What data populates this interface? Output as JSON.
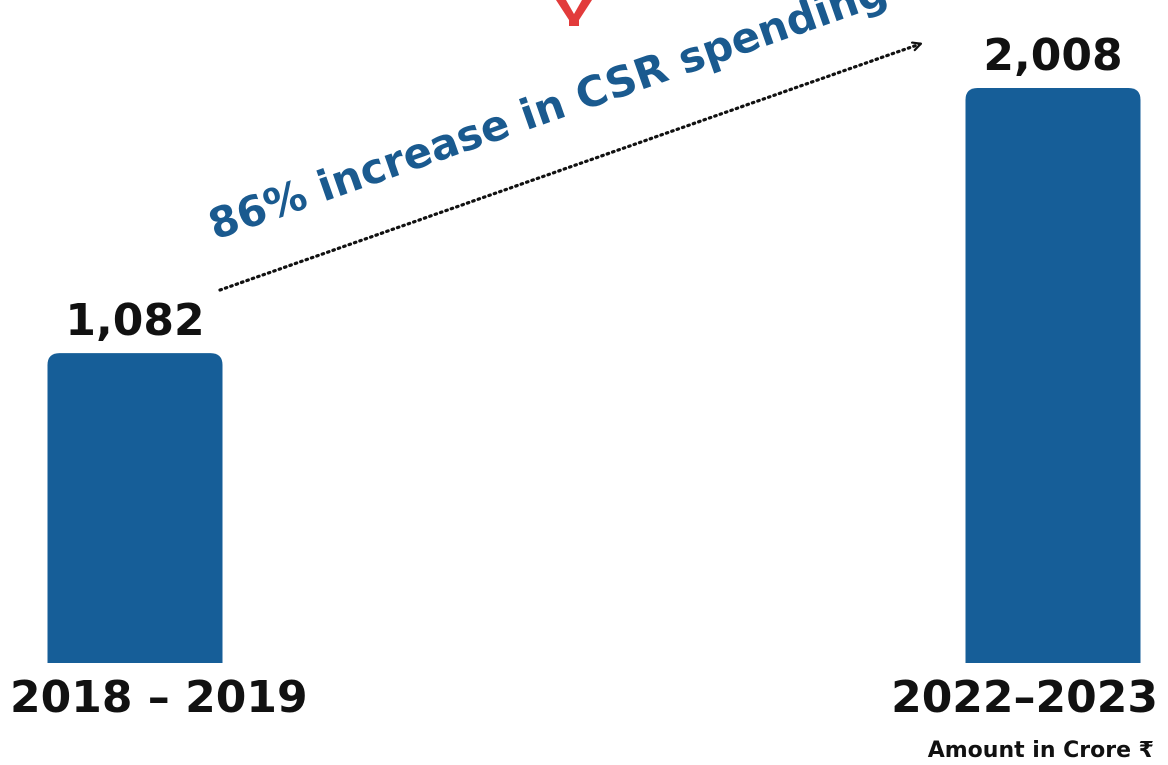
{
  "chart_data": {
    "type": "bar",
    "categories": [
      "2018 – 2019",
      "2022–2023"
    ],
    "values": [
      1082,
      2008
    ],
    "value_labels": [
      "1,082",
      "2,008"
    ],
    "annotation": "86% increase in CSR spending",
    "unit_note": "Amount in Crore ₹",
    "title": "",
    "xlabel": "",
    "ylabel": "",
    "ylim": [
      0,
      2008
    ],
    "grid": false,
    "colors": {
      "bar": "#165e98",
      "annotation": "#1a5a8f",
      "text": "#111111",
      "accent": "#e23b3b"
    }
  }
}
